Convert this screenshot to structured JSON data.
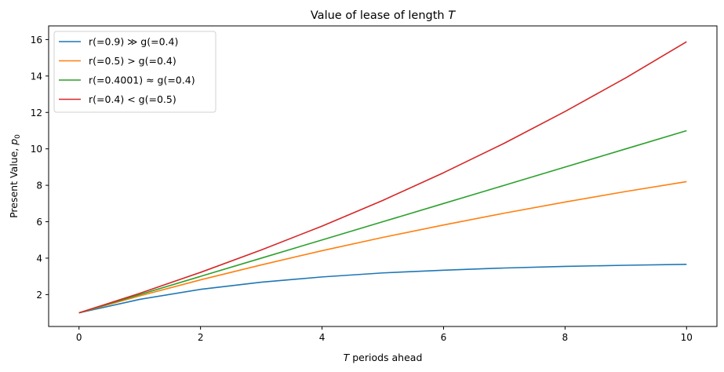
{
  "chart_data": {
    "type": "line",
    "title": "Value of lease of length T",
    "xlabel": "T periods ahead",
    "ylabel": "Present Value, p0",
    "xlim": [
      -0.5,
      10.5
    ],
    "ylim": [
      0.25,
      16.75
    ],
    "xticks": [
      0,
      2,
      4,
      6,
      8,
      10
    ],
    "yticks": [
      2,
      4,
      6,
      8,
      10,
      12,
      14,
      16
    ],
    "grid": false,
    "legend_position": "top-left",
    "x": [
      0,
      1,
      2,
      3,
      4,
      5,
      6,
      7,
      8,
      9,
      10
    ],
    "series": [
      {
        "name": "r(=0.9) ≫ g(=0.4)",
        "color": "#1f77b4",
        "values": [
          1.0,
          1.74,
          2.29,
          2.68,
          2.97,
          3.19,
          3.34,
          3.46,
          3.55,
          3.61,
          3.66
        ]
      },
      {
        "name": "r(=0.5) > g(=0.4)",
        "color": "#ff7f0e",
        "values": [
          1.0,
          1.93,
          2.81,
          3.63,
          4.41,
          5.14,
          5.82,
          6.47,
          7.08,
          7.66,
          8.2
        ]
      },
      {
        "name": "r(=0.4001) ≈ g(=0.4)",
        "color": "#2ca02c",
        "values": [
          1.0,
          2.0,
          3.0,
          4.0,
          5.0,
          6.0,
          7.0,
          8.0,
          9.0,
          10.0,
          11.0
        ]
      },
      {
        "name": "r(=0.4) < g(=0.5)",
        "color": "#d62728",
        "values": [
          1.0,
          2.07,
          3.22,
          4.45,
          5.76,
          7.17,
          8.69,
          10.31,
          12.05,
          13.9,
          15.88
        ]
      }
    ]
  }
}
